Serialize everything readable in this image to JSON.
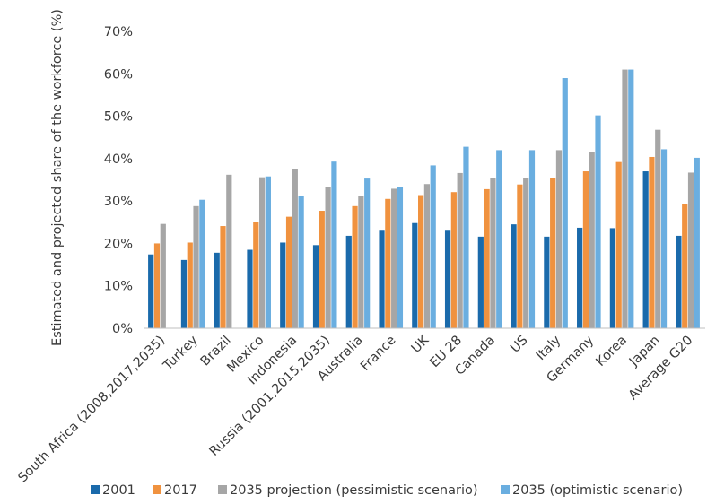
{
  "chart_data": {
    "type": "bar",
    "ylabel": "Estimated and projected share of the workforce (%)",
    "xlabel": "",
    "ylim": [
      0,
      70
    ],
    "yticks": [
      0,
      10,
      20,
      30,
      40,
      50,
      60,
      70
    ],
    "ytick_labels": [
      "0%",
      "10%",
      "20%",
      "30%",
      "40%",
      "50%",
      "60%",
      "70%"
    ],
    "legend_position": "bottom",
    "grid": false,
    "categories": [
      "South Africa (2008,2017,2035)",
      "Turkey",
      "Brazil",
      "Mexico",
      "Indonesia",
      "Russia (2001,2015,2035)",
      "Australia",
      "France",
      "UK",
      "EU 28",
      "Canada",
      "US",
      "Italy",
      "Germany",
      "Korea",
      "Japan",
      "Average G20"
    ],
    "series": [
      {
        "name": "2001",
        "color": "#1a6aab",
        "values": [
          17.4,
          16.1,
          17.8,
          18.5,
          20.2,
          19.6,
          21.8,
          23.0,
          24.8,
          23.0,
          21.6,
          24.5,
          21.6,
          23.7,
          23.6,
          37.0,
          21.8
        ]
      },
      {
        "name": "2017",
        "color": "#f0923f",
        "values": [
          20.0,
          20.2,
          24.1,
          25.1,
          26.3,
          27.7,
          28.8,
          30.5,
          31.4,
          32.1,
          32.8,
          33.9,
          35.4,
          37.0,
          39.2,
          40.4,
          29.3
        ]
      },
      {
        "name": "2035 projection (pessimistic scenario)",
        "color": "#a6a6a6",
        "values": [
          24.6,
          28.8,
          36.2,
          35.6,
          37.6,
          33.3,
          31.3,
          32.9,
          34.0,
          36.6,
          35.4,
          35.4,
          42.0,
          41.5,
          61.0,
          46.8,
          36.7
        ]
      },
      {
        "name": "2035 (optimistic scenario)",
        "color": "#6aaee0",
        "values": [
          null,
          30.3,
          null,
          35.8,
          31.3,
          39.3,
          35.3,
          33.3,
          38.4,
          42.8,
          42.0,
          42.0,
          59.0,
          50.2,
          61.0,
          42.2,
          40.2
        ]
      }
    ]
  }
}
